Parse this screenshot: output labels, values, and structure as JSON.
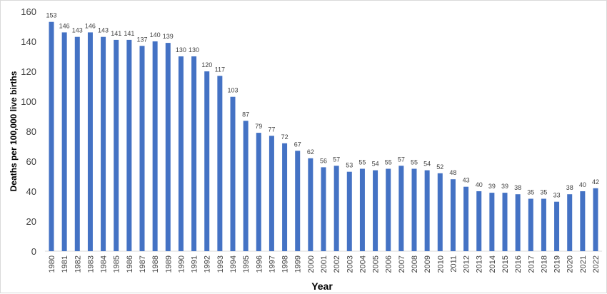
{
  "chart_data": {
    "type": "bar",
    "title": "",
    "xlabel": "Year",
    "ylabel": "Deaths per 100,000 live births",
    "ylim": [
      0,
      160
    ],
    "yticks": [
      0,
      20,
      40,
      60,
      80,
      100,
      120,
      140,
      160
    ],
    "grid": false,
    "bar_color": "#4472C4",
    "categories": [
      "1980",
      "1981",
      "1982",
      "1983",
      "1984",
      "1985",
      "1986",
      "1987",
      "1988",
      "1989",
      "1990",
      "1991",
      "1992",
      "1993",
      "1994",
      "1995",
      "1996",
      "1997",
      "1998",
      "1999",
      "2000",
      "2001",
      "2002",
      "2003",
      "2004",
      "2005",
      "2006",
      "2007",
      "2008",
      "2009",
      "2010",
      "2011",
      "2012",
      "2013",
      "2014",
      "2015",
      "2016",
      "2017",
      "2018",
      "2019",
      "2020",
      "2021",
      "2022"
    ],
    "values": [
      153,
      146,
      143,
      146,
      143,
      141,
      141,
      137,
      140,
      139,
      130,
      130,
      120,
      117,
      103,
      87,
      79,
      77,
      72,
      67,
      62,
      56,
      57,
      53,
      55,
      54,
      55,
      57,
      55,
      54,
      52,
      48,
      43,
      40,
      39,
      39,
      38,
      35,
      35,
      33,
      38,
      40,
      42
    ]
  }
}
